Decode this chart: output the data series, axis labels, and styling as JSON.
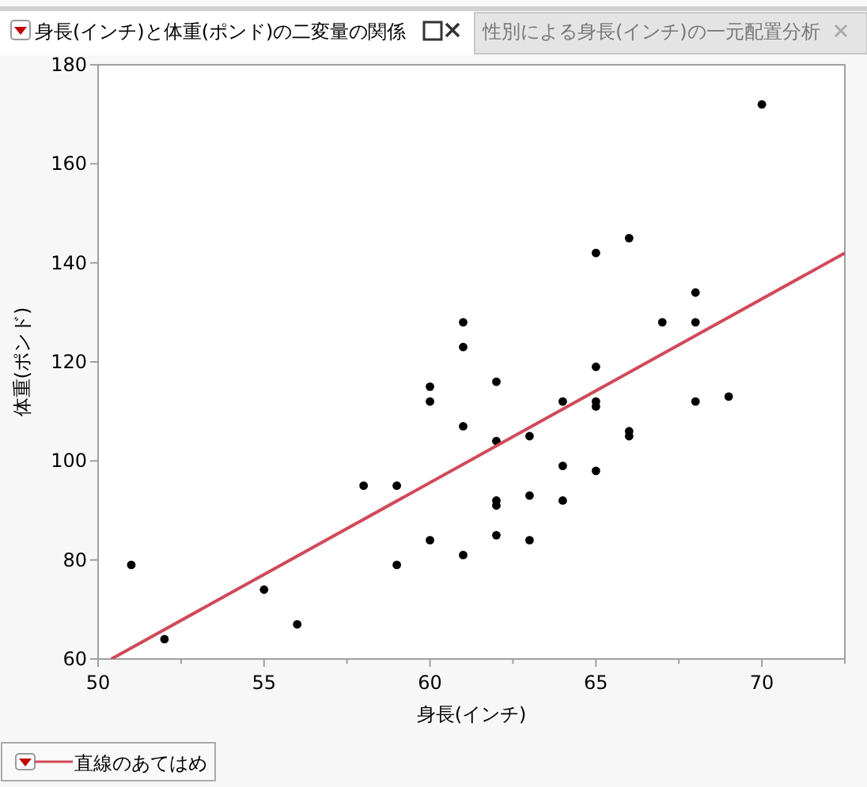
{
  "chart_data": {
    "type": "scatter",
    "title": "身長(インチ)と体重(ポンド)の二変量の関係",
    "annotations": [
      "性別による身長(インチ)の一元配置分析"
    ],
    "xlabel": "身長(インチ)",
    "ylabel": "体重(ポンド)",
    "xlim": [
      50,
      72.5
    ],
    "ylim": [
      60,
      180
    ],
    "xticks": [
      50,
      55,
      60,
      65,
      70
    ],
    "yticks": [
      60,
      80,
      100,
      120,
      140,
      160,
      180
    ],
    "grid": false,
    "legend": "bottom left",
    "series": [
      {
        "type": "scatter",
        "marker": "circle",
        "color": "#000000",
        "x": [
          51,
          52,
          55,
          56,
          58,
          59,
          59,
          60,
          60,
          60,
          61,
          61,
          61,
          61,
          62,
          62,
          62,
          62,
          62,
          63,
          63,
          63,
          64,
          64,
          64,
          65,
          65,
          65,
          65,
          65,
          66,
          66,
          66,
          67,
          68,
          68,
          68,
          69,
          70
        ],
        "values": [
          79,
          64,
          74,
          67,
          95,
          95,
          79,
          115,
          112,
          84,
          128,
          123,
          107,
          81,
          116,
          104,
          92,
          91,
          85,
          105,
          93,
          84,
          112,
          99,
          92,
          142,
          119,
          112,
          111,
          98,
          145,
          106,
          105,
          128,
          134,
          128,
          112,
          113,
          172
        ]
      },
      {
        "type": "line",
        "name": "直線のあてはめ",
        "color": "#d04a5a",
        "x": [
          50.4,
          72.5
        ],
        "values": [
          60,
          142
        ]
      }
    ]
  }
}
